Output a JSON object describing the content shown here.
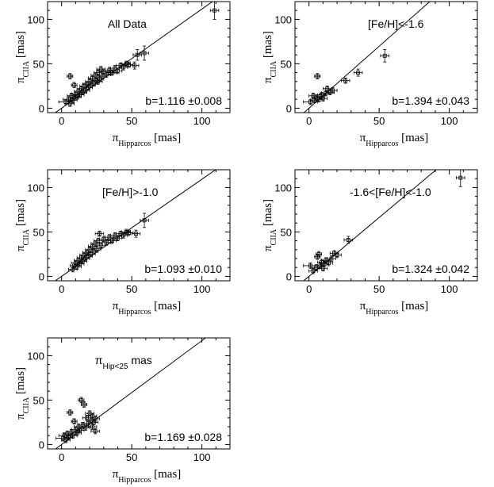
{
  "chart_data": [
    {
      "type": "scatter",
      "panel_label": "All Data",
      "fit_label": "b=1.116  ±0.008",
      "xlabel": "π_Hipparcos [mas]",
      "ylabel": "π_CIIA [mas]",
      "xlim": [
        -10,
        120
      ],
      "ylim": [
        -5,
        120
      ],
      "xticks": [
        0,
        50,
        100
      ],
      "yticks": [
        0,
        50,
        100
      ],
      "fit_slope": 1.116,
      "points": [
        {
          "x": 3,
          "y": 7,
          "ex": 5,
          "ey": 3
        },
        {
          "x": 5,
          "y": 10,
          "ex": 4,
          "ey": 3
        },
        {
          "x": 6,
          "y": 5,
          "ex": 3,
          "ey": 3
        },
        {
          "x": 7,
          "y": 14,
          "ex": 3,
          "ey": 3
        },
        {
          "x": 8,
          "y": 9,
          "ex": 3,
          "ey": 3
        },
        {
          "x": 9,
          "y": 12,
          "ex": 3,
          "ey": 3
        },
        {
          "x": 10,
          "y": 16,
          "ex": 3,
          "ey": 3
        },
        {
          "x": 11,
          "y": 13,
          "ex": 3,
          "ey": 3
        },
        {
          "x": 12,
          "y": 19,
          "ex": 3,
          "ey": 3
        },
        {
          "x": 13,
          "y": 15,
          "ex": 3,
          "ey": 3
        },
        {
          "x": 14,
          "y": 22,
          "ex": 3,
          "ey": 3
        },
        {
          "x": 15,
          "y": 18,
          "ex": 3,
          "ey": 3
        },
        {
          "x": 16,
          "y": 25,
          "ex": 3,
          "ey": 3
        },
        {
          "x": 17,
          "y": 20,
          "ex": 3,
          "ey": 3
        },
        {
          "x": 18,
          "y": 27,
          "ex": 3,
          "ey": 3
        },
        {
          "x": 19,
          "y": 23,
          "ex": 3,
          "ey": 3
        },
        {
          "x": 20,
          "y": 30,
          "ex": 3,
          "ey": 3
        },
        {
          "x": 21,
          "y": 26,
          "ex": 3,
          "ey": 3
        },
        {
          "x": 22,
          "y": 34,
          "ex": 3,
          "ey": 3
        },
        {
          "x": 23,
          "y": 28,
          "ex": 3,
          "ey": 3
        },
        {
          "x": 24,
          "y": 37,
          "ex": 3,
          "ey": 3
        },
        {
          "x": 25,
          "y": 31,
          "ex": 3,
          "ey": 3
        },
        {
          "x": 26,
          "y": 40,
          "ex": 3,
          "ey": 3
        },
        {
          "x": 27,
          "y": 33,
          "ex": 3,
          "ey": 3
        },
        {
          "x": 28,
          "y": 44,
          "ex": 3,
          "ey": 3
        },
        {
          "x": 29,
          "y": 36,
          "ex": 3,
          "ey": 3
        },
        {
          "x": 30,
          "y": 41,
          "ex": 3,
          "ey": 3
        },
        {
          "x": 32,
          "y": 38,
          "ex": 3,
          "ey": 3
        },
        {
          "x": 34,
          "y": 43,
          "ex": 3,
          "ey": 3
        },
        {
          "x": 36,
          "y": 40,
          "ex": 3,
          "ey": 3
        },
        {
          "x": 38,
          "y": 45,
          "ex": 3,
          "ey": 3
        },
        {
          "x": 40,
          "y": 42,
          "ex": 3,
          "ey": 3
        },
        {
          "x": 42,
          "y": 48,
          "ex": 3,
          "ey": 3
        },
        {
          "x": 44,
          "y": 46,
          "ex": 3,
          "ey": 3
        },
        {
          "x": 46,
          "y": 50,
          "ex": 3,
          "ey": 3
        },
        {
          "x": 48,
          "y": 49,
          "ex": 3,
          "ey": 3
        },
        {
          "x": 6,
          "y": 36,
          "ex": 2,
          "ey": 3
        },
        {
          "x": 9,
          "y": 26,
          "ex": 2,
          "ey": 3
        },
        {
          "x": 26,
          "y": 30,
          "ex": 3,
          "ey": 3
        },
        {
          "x": 35,
          "y": 40,
          "ex": 3,
          "ey": 3
        },
        {
          "x": 52,
          "y": 48,
          "ex": 3,
          "ey": 4
        },
        {
          "x": 54,
          "y": 60,
          "ex": 3,
          "ey": 6
        },
        {
          "x": 59,
          "y": 62,
          "ex": 3,
          "ey": 8
        },
        {
          "x": 109,
          "y": 110,
          "ex": 3,
          "ey": 10
        }
      ]
    },
    {
      "type": "scatter",
      "panel_label": "[Fe/H]<-1.6",
      "fit_label": "b=1.394  ±0.043",
      "xlabel": "π_Hipparcos [mas]",
      "ylabel": "π_CIIA [mas]",
      "xlim": [
        -10,
        120
      ],
      "ylim": [
        -5,
        120
      ],
      "xticks": [
        0,
        50,
        100
      ],
      "yticks": [
        0,
        50,
        100
      ],
      "fit_slope": 1.394,
      "points": [
        {
          "x": 1,
          "y": 7,
          "ex": 5,
          "ey": 3
        },
        {
          "x": 3,
          "y": 14,
          "ex": 3,
          "ey": 3
        },
        {
          "x": 4,
          "y": 9,
          "ex": 3,
          "ey": 3
        },
        {
          "x": 5,
          "y": 12,
          "ex": 3,
          "ey": 3
        },
        {
          "x": 6,
          "y": 36,
          "ex": 2,
          "ey": 3
        },
        {
          "x": 7,
          "y": 10,
          "ex": 3,
          "ey": 3
        },
        {
          "x": 8,
          "y": 13,
          "ex": 3,
          "ey": 3
        },
        {
          "x": 9,
          "y": 15,
          "ex": 3,
          "ey": 3
        },
        {
          "x": 10,
          "y": 11,
          "ex": 3,
          "ey": 3
        },
        {
          "x": 12,
          "y": 17,
          "ex": 3,
          "ey": 3
        },
        {
          "x": 13,
          "y": 22,
          "ex": 3,
          "ey": 3
        },
        {
          "x": 15,
          "y": 18,
          "ex": 3,
          "ey": 3
        },
        {
          "x": 17,
          "y": 20,
          "ex": 3,
          "ey": 3
        },
        {
          "x": 26,
          "y": 31,
          "ex": 3,
          "ey": 3
        },
        {
          "x": 35,
          "y": 40,
          "ex": 3,
          "ey": 4
        },
        {
          "x": 54,
          "y": 59,
          "ex": 3,
          "ey": 7
        }
      ]
    },
    {
      "type": "scatter",
      "panel_label": "[Fe/H]>-1.0",
      "fit_label": "b=1.093  ±0.010",
      "xlabel": "π_Hipparcos [mas]",
      "ylabel": "π_CIIA [mas]",
      "xlim": [
        -10,
        120
      ],
      "ylim": [
        -5,
        120
      ],
      "xticks": [
        0,
        50,
        100
      ],
      "yticks": [
        0,
        50,
        100
      ],
      "fit_slope": 1.093,
      "points": [
        {
          "x": 8,
          "y": 8,
          "ex": 3,
          "ey": 3
        },
        {
          "x": 9,
          "y": 12,
          "ex": 3,
          "ey": 3
        },
        {
          "x": 10,
          "y": 15,
          "ex": 3,
          "ey": 3
        },
        {
          "x": 11,
          "y": 11,
          "ex": 3,
          "ey": 3
        },
        {
          "x": 12,
          "y": 18,
          "ex": 3,
          "ey": 3
        },
        {
          "x": 13,
          "y": 14,
          "ex": 3,
          "ey": 3
        },
        {
          "x": 14,
          "y": 21,
          "ex": 3,
          "ey": 3
        },
        {
          "x": 15,
          "y": 17,
          "ex": 3,
          "ey": 3
        },
        {
          "x": 16,
          "y": 24,
          "ex": 3,
          "ey": 3
        },
        {
          "x": 17,
          "y": 20,
          "ex": 3,
          "ey": 3
        },
        {
          "x": 18,
          "y": 27,
          "ex": 3,
          "ey": 3
        },
        {
          "x": 19,
          "y": 23,
          "ex": 3,
          "ey": 3
        },
        {
          "x": 20,
          "y": 30,
          "ex": 3,
          "ey": 3
        },
        {
          "x": 21,
          "y": 25,
          "ex": 3,
          "ey": 3
        },
        {
          "x": 22,
          "y": 34,
          "ex": 3,
          "ey": 3
        },
        {
          "x": 23,
          "y": 28,
          "ex": 3,
          "ey": 3
        },
        {
          "x": 24,
          "y": 37,
          "ex": 3,
          "ey": 3
        },
        {
          "x": 25,
          "y": 31,
          "ex": 3,
          "ey": 3
        },
        {
          "x": 26,
          "y": 40,
          "ex": 3,
          "ey": 3
        },
        {
          "x": 27,
          "y": 48,
          "ex": 3,
          "ey": 3
        },
        {
          "x": 28,
          "y": 35,
          "ex": 3,
          "ey": 3
        },
        {
          "x": 30,
          "y": 42,
          "ex": 3,
          "ey": 3
        },
        {
          "x": 32,
          "y": 38,
          "ex": 3,
          "ey": 3
        },
        {
          "x": 34,
          "y": 44,
          "ex": 3,
          "ey": 3
        },
        {
          "x": 36,
          "y": 40,
          "ex": 3,
          "ey": 3
        },
        {
          "x": 38,
          "y": 46,
          "ex": 3,
          "ey": 3
        },
        {
          "x": 40,
          "y": 43,
          "ex": 3,
          "ey": 3
        },
        {
          "x": 42,
          "y": 48,
          "ex": 3,
          "ey": 3
        },
        {
          "x": 44,
          "y": 46,
          "ex": 3,
          "ey": 3
        },
        {
          "x": 46,
          "y": 50,
          "ex": 3,
          "ey": 3
        },
        {
          "x": 48,
          "y": 49,
          "ex": 3,
          "ey": 3
        },
        {
          "x": 53,
          "y": 48,
          "ex": 3,
          "ey": 4
        },
        {
          "x": 59,
          "y": 63,
          "ex": 3,
          "ey": 8
        }
      ]
    },
    {
      "type": "scatter",
      "panel_label": "-1.6<[Fe/H]<-1.0",
      "fit_label": "b=1.324  ±0.042",
      "xlabel": "π_Hipparcos [mas]",
      "ylabel": "π_CIIA [mas]",
      "xlim": [
        -10,
        120
      ],
      "ylim": [
        -5,
        120
      ],
      "xticks": [
        0,
        50,
        100
      ],
      "yticks": [
        0,
        50,
        100
      ],
      "fit_slope": 1.324,
      "points": [
        {
          "x": 1,
          "y": 12,
          "ex": 5,
          "ey": 3
        },
        {
          "x": 3,
          "y": 6,
          "ex": 3,
          "ey": 3
        },
        {
          "x": 5,
          "y": 10,
          "ex": 3,
          "ey": 3
        },
        {
          "x": 6,
          "y": 22,
          "ex": 2,
          "ey": 3
        },
        {
          "x": 7,
          "y": 25,
          "ex": 2,
          "ey": 3
        },
        {
          "x": 8,
          "y": 12,
          "ex": 3,
          "ey": 3
        },
        {
          "x": 9,
          "y": 16,
          "ex": 3,
          "ey": 3
        },
        {
          "x": 10,
          "y": 9,
          "ex": 3,
          "ey": 3
        },
        {
          "x": 11,
          "y": 14,
          "ex": 3,
          "ey": 3
        },
        {
          "x": 12,
          "y": 18,
          "ex": 3,
          "ey": 3
        },
        {
          "x": 14,
          "y": 15,
          "ex": 3,
          "ey": 3
        },
        {
          "x": 16,
          "y": 20,
          "ex": 3,
          "ey": 3
        },
        {
          "x": 18,
          "y": 26,
          "ex": 3,
          "ey": 3
        },
        {
          "x": 20,
          "y": 24,
          "ex": 3,
          "ey": 3
        },
        {
          "x": 28,
          "y": 41,
          "ex": 3,
          "ey": 4
        },
        {
          "x": 108,
          "y": 111,
          "ex": 3,
          "ey": 10
        }
      ]
    },
    {
      "type": "scatter",
      "panel_label": "π_Hip<25 mas",
      "fit_label": "b=1.169  ±0.028",
      "xlabel": "π_Hipparcos [mas]",
      "ylabel": "π_CIIA [mas]",
      "xlim": [
        -10,
        120
      ],
      "ylim": [
        -5,
        120
      ],
      "xticks": [
        0,
        50,
        100
      ],
      "yticks": [
        0,
        50,
        100
      ],
      "fit_slope": 1.169,
      "points": [
        {
          "x": 1,
          "y": 7,
          "ex": 5,
          "ey": 3
        },
        {
          "x": 2,
          "y": 10,
          "ex": 4,
          "ey": 3
        },
        {
          "x": 3,
          "y": 5,
          "ex": 3,
          "ey": 3
        },
        {
          "x": 4,
          "y": 12,
          "ex": 3,
          "ey": 3
        },
        {
          "x": 5,
          "y": 8,
          "ex": 3,
          "ey": 3
        },
        {
          "x": 6,
          "y": 36,
          "ex": 2,
          "ey": 3
        },
        {
          "x": 7,
          "y": 14,
          "ex": 3,
          "ey": 3
        },
        {
          "x": 8,
          "y": 10,
          "ex": 3,
          "ey": 3
        },
        {
          "x": 9,
          "y": 26,
          "ex": 2,
          "ey": 3
        },
        {
          "x": 10,
          "y": 17,
          "ex": 3,
          "ey": 3
        },
        {
          "x": 11,
          "y": 13,
          "ex": 3,
          "ey": 3
        },
        {
          "x": 12,
          "y": 20,
          "ex": 3,
          "ey": 3
        },
        {
          "x": 13,
          "y": 16,
          "ex": 3,
          "ey": 3
        },
        {
          "x": 14,
          "y": 50,
          "ex": 2,
          "ey": 3
        },
        {
          "x": 15,
          "y": 22,
          "ex": 3,
          "ey": 3
        },
        {
          "x": 16,
          "y": 45,
          "ex": 2,
          "ey": 3
        },
        {
          "x": 17,
          "y": 19,
          "ex": 3,
          "ey": 3
        },
        {
          "x": 18,
          "y": 30,
          "ex": 3,
          "ey": 3
        },
        {
          "x": 19,
          "y": 24,
          "ex": 3,
          "ey": 3
        },
        {
          "x": 20,
          "y": 35,
          "ex": 3,
          "ey": 3
        },
        {
          "x": 21,
          "y": 27,
          "ex": 3,
          "ey": 3
        },
        {
          "x": 22,
          "y": 32,
          "ex": 3,
          "ey": 3
        },
        {
          "x": 23,
          "y": 25,
          "ex": 3,
          "ey": 3
        },
        {
          "x": 24,
          "y": 29,
          "ex": 3,
          "ey": 3
        },
        {
          "x": 24,
          "y": 15,
          "ex": 3,
          "ey": 3
        },
        {
          "x": 22,
          "y": 20,
          "ex": 3,
          "ey": 3
        }
      ]
    }
  ]
}
